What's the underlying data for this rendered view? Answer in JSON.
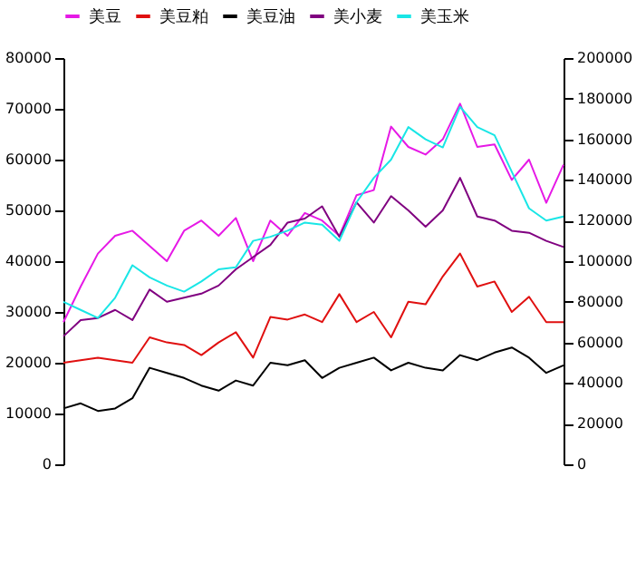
{
  "chart_data": {
    "type": "line",
    "categories": [
      null,
      null,
      null,
      null,
      null,
      null,
      null,
      null,
      null,
      null,
      null,
      null,
      null,
      null,
      null,
      null,
      null,
      null,
      null,
      null,
      null,
      null,
      null,
      null,
      null,
      null,
      null,
      null,
      null,
      null
    ],
    "ylim": [
      0,
      80000
    ],
    "yticks": [
      0,
      10000,
      20000,
      30000,
      40000,
      50000,
      60000,
      70000,
      80000
    ],
    "y2lim": [
      0,
      200000
    ],
    "y2ticks": [
      0,
      20000,
      40000,
      60000,
      80000,
      100000,
      120000,
      140000,
      160000,
      180000,
      200000
    ],
    "grid": false,
    "legend": "top",
    "tick_labels": "y",
    "series": [
      {
        "name": "美豆",
        "color": "#e619e6",
        "values": [
          28000,
          35000,
          41500,
          45000,
          46000,
          43000,
          40000,
          46000,
          48000,
          45000,
          48500,
          40000,
          48000,
          45000,
          49500,
          48000,
          45000,
          53000,
          54000,
          66500,
          62500,
          61000,
          64000,
          71000,
          62500,
          63000,
          56000,
          60000,
          51500,
          59000
        ]
      },
      {
        "name": "美豆粕",
        "color": "#e01010",
        "values": [
          20000,
          20500,
          21000,
          20500,
          20000,
          25000,
          24000,
          23500,
          21500,
          24000,
          26000,
          21000,
          29000,
          28500,
          29500,
          28000,
          33500,
          28000,
          30000,
          25000,
          32000,
          31500,
          37000,
          41500,
          35000,
          36000,
          30000,
          33000,
          28000,
          28000
        ]
      },
      {
        "name": "美豆油",
        "color": "#000000",
        "values": [
          11000,
          12000,
          10500,
          11000,
          13000,
          19000,
          18000,
          17000,
          15500,
          14500,
          16500,
          15500,
          20000,
          19500,
          20500,
          17000,
          19000,
          20000,
          21000,
          18500,
          20000,
          19000,
          18500,
          21500,
          20500,
          22000,
          23000,
          21000,
          18000,
          19500
        ]
      },
      {
        "name": "美小麦",
        "color": "#800080",
        "axis": "y2",
        "values": [
          63000,
          71000,
          72000,
          76000,
          71000,
          86000,
          80000,
          82000,
          84000,
          88000,
          96000,
          102000,
          108000,
          119000,
          121000,
          127000,
          112000,
          129000,
          119000,
          132000,
          125000,
          117000,
          125000,
          141000,
          122000,
          120000,
          115000,
          114000,
          110000,
          107000
        ]
      },
      {
        "name": "美玉米",
        "color": "#19e6e6",
        "axis": "y2",
        "values": [
          80000,
          76000,
          72000,
          82000,
          98000,
          92000,
          88000,
          85000,
          90000,
          96000,
          97000,
          110000,
          112000,
          115000,
          119000,
          118000,
          110000,
          129000,
          141000,
          150000,
          166000,
          160000,
          156000,
          176000,
          166000,
          162000,
          144000,
          126000,
          120000,
          122000
        ]
      }
    ]
  }
}
